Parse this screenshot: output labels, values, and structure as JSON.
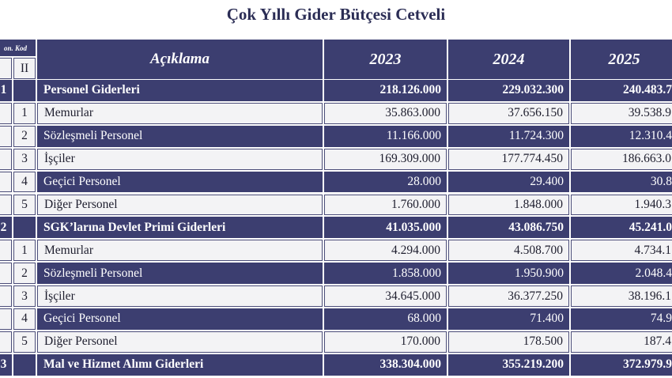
{
  "title": "Çok Yıllı Gider Bütçesi Cetveli",
  "table": {
    "header": {
      "code": "on. Kod",
      "code_ii": "II",
      "description": "Açıklama",
      "years": [
        "2023",
        "2024",
        "2025"
      ]
    },
    "rows": [
      {
        "i": "1",
        "label": "Personel Giderleri",
        "values": [
          "218.126.000",
          "229.032.300",
          "240.483.7"
        ]
      },
      {
        "ii": "1",
        "label": "Memurlar",
        "values": [
          "35.863.000",
          "37.656.150",
          "39.538.9"
        ]
      },
      {
        "ii": "2",
        "label": "Sözleşmeli Personel",
        "values": [
          "11.166.000",
          "11.724.300",
          "12.310.4"
        ]
      },
      {
        "ii": "3",
        "label": "İşçiler",
        "values": [
          "169.309.000",
          "177.774.450",
          "186.663.0"
        ]
      },
      {
        "ii": "4",
        "label": "Geçici Personel",
        "values": [
          "28.000",
          "29.400",
          "30.8"
        ]
      },
      {
        "ii": "5",
        "label": "Diğer Personel",
        "values": [
          "1.760.000",
          "1.848.000",
          "1.940.3"
        ]
      },
      {
        "i": "2",
        "label": "SGK’larına Devlet Primi Giderleri",
        "values": [
          "41.035.000",
          "43.086.750",
          "45.241.0"
        ]
      },
      {
        "ii": "1",
        "label": "Memurlar",
        "values": [
          "4.294.000",
          "4.508.700",
          "4.734.1"
        ]
      },
      {
        "ii": "2",
        "label": "Sözleşmeli Personel",
        "values": [
          "1.858.000",
          "1.950.900",
          "2.048.4"
        ]
      },
      {
        "ii": "3",
        "label": "İşçiler",
        "values": [
          "34.645.000",
          "36.377.250",
          "38.196.1"
        ]
      },
      {
        "ii": "4",
        "label": "Geçici Personel",
        "values": [
          "68.000",
          "71.400",
          "74.9"
        ]
      },
      {
        "ii": "5",
        "label": "Diğer Personel",
        "values": [
          "170.000",
          "178.500",
          "187.4"
        ]
      },
      {
        "i": "3",
        "label": "Mal ve Hizmet Alımı Giderleri",
        "values": [
          "338.304.000",
          "355.219.200",
          "372.979.9"
        ]
      }
    ]
  }
}
